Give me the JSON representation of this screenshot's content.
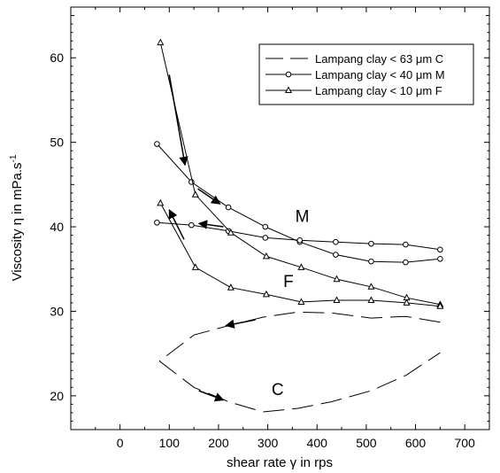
{
  "chart_data": {
    "type": "line",
    "xlabel": "shear rate γ in rps",
    "ylabel": "Viscosity η in mPa.s",
    "ylabel_sup": "-1",
    "xlim": [
      -100,
      750
    ],
    "ylim": [
      16,
      66
    ],
    "xticks": [
      0,
      100,
      200,
      300,
      400,
      500,
      600,
      700
    ],
    "yticks": [
      20,
      30,
      40,
      50,
      60
    ],
    "grid": false,
    "legend_position": "top-right",
    "series": [
      {
        "name": "Lampang clay < 63 μm C",
        "style": "dashed",
        "marker": "none",
        "segments": [
          [
            [
              80,
              24.1
            ],
            [
              150,
              21.0
            ],
            [
              220,
              19.3
            ],
            [
              290,
              18.1
            ],
            [
              360,
              18.5
            ],
            [
              430,
              19.3
            ],
            [
              510,
              20.6
            ],
            [
              580,
              22.4
            ],
            [
              650,
              25.1
            ]
          ],
          [
            [
              650,
              28.7
            ],
            [
              580,
              29.4
            ],
            [
              510,
              29.2
            ],
            [
              430,
              29.8
            ],
            [
              360,
              29.9
            ],
            [
              290,
              29.3
            ],
            [
              220,
              28.3
            ],
            [
              150,
              27.2
            ],
            [
              80,
              24.1
            ]
          ]
        ]
      },
      {
        "name": "Lampang clay < 40 μm M",
        "style": "solid",
        "marker": "circle",
        "segments": [
          [
            [
              75,
              49.8
            ],
            [
              145,
              45.3
            ],
            [
              220,
              42.3
            ],
            [
              295,
              40.0
            ],
            [
              365,
              38.2
            ],
            [
              438,
              36.7
            ],
            [
              510,
              35.9
            ],
            [
              580,
              35.8
            ],
            [
              650,
              36.2
            ]
          ],
          [
            [
              650,
              37.3
            ],
            [
              580,
              37.9
            ],
            [
              510,
              38.0
            ],
            [
              438,
              38.2
            ],
            [
              365,
              38.4
            ],
            [
              295,
              38.7
            ],
            [
              220,
              39.5
            ],
            [
              145,
              40.2
            ],
            [
              75,
              40.5
            ]
          ]
        ]
      },
      {
        "name": "Lampang clay < 10 μm F",
        "style": "solid",
        "marker": "triangle",
        "segments": [
          [
            [
              82,
              61.8
            ],
            [
              153,
              43.8
            ],
            [
              225,
              39.3
            ],
            [
              297,
              36.5
            ],
            [
              368,
              35.2
            ],
            [
              440,
              33.8
            ],
            [
              510,
              32.9
            ],
            [
              582,
              31.6
            ],
            [
              650,
              30.8
            ]
          ],
          [
            [
              650,
              30.6
            ],
            [
              582,
              31.0
            ],
            [
              510,
              31.3
            ],
            [
              440,
              31.3
            ],
            [
              368,
              31.1
            ],
            [
              297,
              32.0
            ],
            [
              225,
              32.8
            ],
            [
              153,
              35.2
            ],
            [
              82,
              42.8
            ]
          ]
        ]
      }
    ],
    "arrows": [
      {
        "from": [
          100,
          58.0
        ],
        "to": [
          132,
          47.3
        ]
      },
      {
        "from": [
          158,
          44.5
        ],
        "to": [
          203,
          42.7
        ]
      },
      {
        "from": [
          210,
          40.0
        ],
        "to": [
          160,
          40.4
        ]
      },
      {
        "from": [
          130,
          38.5
        ],
        "to": [
          100,
          42.0
        ]
      },
      {
        "from": [
          275,
          29.0
        ],
        "to": [
          215,
          28.3
        ]
      },
      {
        "from": [
          160,
          20.6
        ],
        "to": [
          210,
          19.5
        ]
      }
    ],
    "annotations": [
      {
        "text": "M",
        "x": 370,
        "y": 40.6
      },
      {
        "text": "F",
        "x": 342,
        "y": 32.9
      },
      {
        "text": "C",
        "x": 320,
        "y": 20.1
      }
    ]
  }
}
